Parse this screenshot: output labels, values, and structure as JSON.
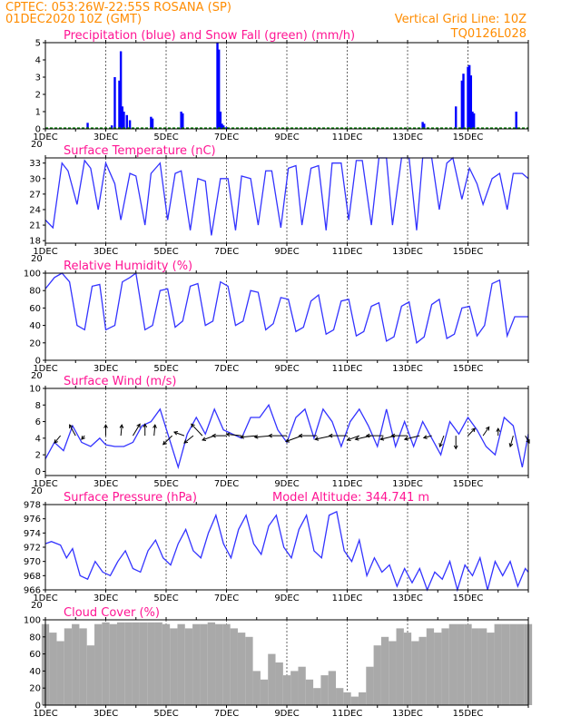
{
  "header": {
    "line1": "CPTEC:   053:26W-22:55S   ROSANA (SP)",
    "line2": "01DEC2020 10Z (GMT)",
    "grid_note": "Vertical Grid Line: 10Z",
    "code": "TQ0126L028",
    "color": "#ff8c00"
  },
  "colors": {
    "blue": "#0000ff",
    "line": "#3333ff",
    "green": "#008000",
    "gray": "#a9a9a9",
    "title": "#ff1493",
    "arrow": "#000000"
  },
  "x_ticks": [
    "1DEC",
    "3DEC",
    "5DEC",
    "7DEC",
    "9DEC",
    "11DEC",
    "13DEC",
    "15DEC"
  ],
  "cut_label": "20",
  "panels": [
    {
      "id": "precip",
      "title": "Precipitation (blue) and Snow Fall (green) (mm/h)",
      "yticks": [
        "0",
        "1",
        "2",
        "3",
        "4",
        "5"
      ],
      "ymin": 0,
      "ymax": 5,
      "chart_data": {
        "type": "bar",
        "xlabel": "",
        "ylabel": "",
        "ylim": [
          0,
          5
        ],
        "series": [
          {
            "name": "Precipitation",
            "color": "#0000ff",
            "x": [
              1.4,
              2.2,
              2.3,
              2.45,
              2.5,
              2.55,
              2.6,
              2.7,
              2.8,
              3.5,
              3.55,
              4.5,
              4.55,
              5.7,
              5.75,
              5.8,
              5.85,
              5.9,
              6.0,
              12.5,
              12.55,
              13.6,
              13.8,
              13.85,
              14.0,
              14.05,
              14.1,
              14.15,
              14.2,
              15.6
            ],
            "values": [
              0.35,
              0.2,
              3.0,
              2.8,
              4.5,
              1.3,
              1.0,
              0.8,
              0.5,
              0.7,
              0.6,
              1.0,
              0.9,
              5.0,
              4.6,
              1.0,
              0.3,
              0.2,
              0.1,
              0.4,
              0.3,
              1.3,
              2.8,
              3.2,
              3.6,
              3.7,
              3.1,
              1.0,
              0.9,
              1.0
            ]
          },
          {
            "name": "Snow Fall",
            "color": "#008000",
            "x": [],
            "values": []
          }
        ]
      }
    },
    {
      "id": "temp",
      "title": "Surface Temperature (nC)",
      "yticks": [
        "18",
        "21",
        "24",
        "27",
        "30",
        "33"
      ],
      "ymin": 17.5,
      "ymax": 34,
      "chart_data": {
        "type": "line",
        "xlabel": "",
        "ylabel": "",
        "ylim": [
          17.5,
          34
        ],
        "series": [
          {
            "name": "Surface Temperature",
            "x": [
              0.0,
              0.25,
              0.55,
              0.75,
              1.05,
              1.3,
              1.5,
              1.75,
              2.0,
              2.3,
              2.5,
              2.8,
              3.0,
              3.3,
              3.5,
              3.8,
              4.05,
              4.3,
              4.5,
              4.8,
              5.05,
              5.3,
              5.5,
              5.8,
              6.05,
              6.3,
              6.5,
              6.8,
              7.05,
              7.3,
              7.5,
              7.8,
              8.05,
              8.3,
              8.5,
              8.8,
              9.05,
              9.3,
              9.5,
              9.8,
              10.05,
              10.3,
              10.5,
              10.8,
              11.05,
              11.3,
              11.5,
              11.8,
              12.05,
              12.3,
              12.5,
              12.8,
              13.05,
              13.3,
              13.5,
              13.8,
              14.05,
              14.3,
              14.5,
              14.8,
              15.05,
              15.3,
              15.5,
              15.8,
              16.0
            ],
            "values": [
              22.0,
              20.5,
              33.0,
              31.5,
              25.0,
              33.5,
              32.0,
              24.0,
              33.0,
              29.0,
              22.0,
              31.0,
              30.5,
              21.0,
              31.0,
              33.0,
              22.0,
              31.0,
              31.5,
              20.0,
              30.0,
              29.5,
              19.0,
              30.0,
              30.0,
              20.0,
              30.5,
              30.0,
              21.0,
              31.5,
              31.5,
              20.5,
              32.0,
              32.5,
              21.0,
              32.0,
              32.5,
              20.0,
              33.0,
              33.0,
              22.0,
              33.5,
              33.5,
              21.0,
              34.0,
              34.0,
              21.0,
              34.0,
              34.0,
              20.0,
              34.0,
              34.0,
              24.0,
              33.0,
              34.0,
              26.0,
              32.0,
              29.0,
              25.0,
              30.0,
              31.0,
              24.0,
              31.0,
              31.0,
              30.0
            ]
          }
        ]
      }
    },
    {
      "id": "rh",
      "title": "Relative Humidity (%)",
      "yticks": [
        "0",
        "20",
        "40",
        "60",
        "80",
        "100"
      ],
      "ymin": 0,
      "ymax": 100,
      "chart_data": {
        "type": "line",
        "xlabel": "",
        "ylabel": "",
        "ylim": [
          0,
          100
        ],
        "series": [
          {
            "name": "Relative Humidity",
            "x": [
              0.0,
              0.3,
              0.55,
              0.8,
              1.05,
              1.3,
              1.55,
              1.8,
              2.0,
              2.3,
              2.55,
              2.8,
              3.0,
              3.3,
              3.55,
              3.8,
              4.05,
              4.3,
              4.55,
              4.8,
              5.05,
              5.3,
              5.55,
              5.8,
              6.05,
              6.3,
              6.55,
              6.8,
              7.05,
              7.3,
              7.55,
              7.8,
              8.05,
              8.3,
              8.55,
              8.8,
              9.05,
              9.3,
              9.55,
              9.8,
              10.05,
              10.3,
              10.55,
              10.8,
              11.05,
              11.3,
              11.55,
              11.8,
              12.05,
              12.3,
              12.55,
              12.8,
              13.05,
              13.3,
              13.55,
              13.8,
              14.05,
              14.3,
              14.55,
              14.8,
              15.05,
              15.3,
              15.55,
              15.8,
              16.0
            ],
            "values": [
              82,
              95,
              100,
              90,
              40,
              35,
              85,
              87,
              35,
              40,
              90,
              95,
              100,
              35,
              40,
              80,
              82,
              38,
              45,
              85,
              88,
              40,
              45,
              90,
              85,
              40,
              45,
              80,
              78,
              35,
              42,
              72,
              70,
              33,
              38,
              68,
              75,
              30,
              35,
              68,
              70,
              28,
              33,
              62,
              66,
              22,
              27,
              62,
              67,
              20,
              27,
              64,
              70,
              25,
              30,
              60,
              62,
              28,
              40,
              88,
              92,
              28,
              50,
              50,
              50
            ]
          }
        ]
      }
    },
    {
      "id": "wind",
      "title": "Surface Wind (m/s)",
      "yticks": [
        "0",
        "2",
        "4",
        "6",
        "8",
        "10"
      ],
      "ymin": -0.5,
      "ymax": 10,
      "chart_data": {
        "type": "line",
        "xlabel": "",
        "ylabel": "",
        "ylim": [
          -0.5,
          10
        ],
        "series": [
          {
            "name": "Surface Wind",
            "x": [
              0.0,
              0.3,
              0.6,
              0.9,
              1.2,
              1.5,
              1.8,
              2.0,
              2.3,
              2.6,
              2.9,
              3.2,
              3.5,
              3.8,
              4.1,
              4.4,
              4.7,
              5.0,
              5.3,
              5.6,
              5.9,
              6.2,
              6.5,
              6.8,
              7.1,
              7.4,
              7.7,
              8.0,
              8.3,
              8.6,
              8.9,
              9.2,
              9.5,
              9.8,
              10.1,
              10.4,
              10.7,
              11.0,
              11.3,
              11.6,
              11.9,
              12.2,
              12.5,
              12.8,
              13.1,
              13.4,
              13.7,
              14.0,
              14.3,
              14.6,
              14.9,
              15.2,
              15.5,
              15.8,
              16.0
            ],
            "values": [
              1.5,
              3.5,
              2.5,
              5.5,
              3.5,
              3.0,
              4.0,
              3.2,
              3.0,
              3.0,
              3.5,
              5.5,
              6.0,
              7.5,
              4.0,
              0.5,
              4.5,
              6.5,
              4.5,
              7.5,
              5.0,
              4.5,
              4.0,
              6.5,
              6.5,
              8.0,
              5.0,
              3.5,
              6.5,
              7.5,
              4.0,
              7.5,
              6.0,
              3.0,
              6.0,
              7.5,
              5.5,
              3.0,
              7.5,
              3.0,
              6.0,
              3.0,
              6.0,
              4.0,
              2.0,
              6.0,
              4.5,
              6.5,
              5.0,
              3.0,
              2.0,
              6.5,
              5.5,
              0.5,
              4.5
            ]
          }
        ],
        "arrows": {
          "x": [
            0.5,
            1.0,
            1.3,
            2.0,
            2.5,
            2.9,
            3.3,
            3.6,
            4.2,
            4.6,
            4.9,
            5.2,
            5.6,
            6.0,
            6.5,
            7.0,
            7.5,
            8.0,
            8.5,
            9.0,
            9.5,
            10.0,
            10.4,
            10.8,
            11.2,
            11.6,
            12.0,
            12.4,
            12.8,
            13.2,
            13.6,
            14.0,
            14.5,
            15.0,
            15.5,
            15.9
          ],
          "dx": [
            -0.3,
            -0.3,
            -0.15,
            0.0,
            0.05,
            0.35,
            0.0,
            0.05,
            -0.45,
            -0.5,
            -0.45,
            -0.55,
            -0.6,
            -0.7,
            -0.75,
            -0.8,
            -0.85,
            -0.9,
            -0.8,
            -0.9,
            -0.85,
            -0.9,
            -0.6,
            -0.8,
            -0.85,
            -0.75,
            -0.8,
            -0.75,
            -0.4,
            -0.2,
            0.0,
            0.35,
            0.3,
            0.0,
            -0.15,
            0.2
          ],
          "dy": [
            -1.0,
            1.5,
            -0.5,
            1.5,
            1.5,
            1.6,
            1.6,
            1.5,
            -1.2,
            0.5,
            -1.0,
            1.6,
            -0.6,
            0.0,
            0.2,
            -0.2,
            -0.2,
            0.0,
            -0.8,
            0.0,
            -0.5,
            0.0,
            -0.6,
            -0.5,
            0.0,
            -0.5,
            0.0,
            -0.5,
            -0.3,
            -1.5,
            -1.8,
            1.0,
            1.2,
            1.0,
            -1.5,
            -1.0
          ]
        }
      }
    },
    {
      "id": "press",
      "title": "Surface Pressure (hPa)",
      "extra": "Model Altitude: 344.741 m",
      "yticks": [
        "966",
        "968",
        "970",
        "972",
        "974",
        "976",
        "978"
      ],
      "ymin": 966,
      "ymax": 978,
      "chart_data": {
        "type": "line",
        "xlabel": "",
        "ylabel": "",
        "ylim": [
          966,
          978
        ],
        "series": [
          {
            "name": "Surface Pressure",
            "x": [
              0.0,
              0.2,
              0.5,
              0.7,
              0.9,
              1.15,
              1.4,
              1.65,
              1.9,
              2.15,
              2.4,
              2.65,
              2.9,
              3.15,
              3.4,
              3.65,
              3.9,
              4.15,
              4.4,
              4.65,
              4.9,
              5.15,
              5.4,
              5.65,
              5.9,
              6.15,
              6.4,
              6.65,
              6.9,
              7.15,
              7.4,
              7.65,
              7.9,
              8.15,
              8.4,
              8.65,
              8.9,
              9.15,
              9.4,
              9.65,
              9.9,
              10.15,
              10.4,
              10.65,
              10.9,
              11.15,
              11.4,
              11.65,
              11.9,
              12.15,
              12.4,
              12.65,
              12.9,
              13.15,
              13.4,
              13.65,
              13.9,
              14.15,
              14.4,
              14.65,
              14.9,
              15.15,
              15.4,
              15.65,
              15.9,
              16.0
            ],
            "values": [
              972.5,
              972.8,
              972.3,
              970.5,
              971.8,
              968.0,
              967.5,
              970.0,
              968.5,
              968.0,
              970.0,
              971.5,
              969.0,
              968.5,
              971.5,
              973.0,
              970.5,
              969.5,
              972.5,
              974.5,
              971.5,
              970.5,
              974.0,
              976.5,
              972.5,
              970.5,
              974.5,
              976.5,
              972.5,
              971.0,
              975.0,
              976.5,
              972.0,
              970.5,
              974.5,
              976.5,
              971.5,
              970.5,
              976.5,
              977.0,
              971.5,
              970.0,
              973.0,
              968.0,
              970.5,
              968.5,
              969.5,
              966.5,
              969.0,
              967.0,
              969.0,
              965.5,
              968.5,
              967.5,
              970.0,
              966.0,
              969.5,
              968.0,
              970.5,
              966.0,
              970.0,
              968.0,
              970.0,
              966.5,
              969.0,
              968.5
            ]
          }
        ]
      }
    },
    {
      "id": "cloud",
      "title": "Cloud Cover (%)",
      "yticks": [
        "0",
        "20",
        "40",
        "60",
        "80",
        "100"
      ],
      "ymin": 0,
      "ymax": 100,
      "chart_data": {
        "type": "area",
        "xlabel": "",
        "ylabel": "",
        "ylim": [
          0,
          100
        ],
        "series": [
          {
            "name": "Cloud Cover",
            "x": [
              0.0,
              0.25,
              0.5,
              0.75,
              1.0,
              1.25,
              1.5,
              1.75,
              2.0,
              2.25,
              2.5,
              2.75,
              3.0,
              3.25,
              3.5,
              3.75,
              4.0,
              4.25,
              4.5,
              4.75,
              5.0,
              5.25,
              5.5,
              5.75,
              6.0,
              6.25,
              6.5,
              6.75,
              7.0,
              7.25,
              7.5,
              7.75,
              8.0,
              8.25,
              8.5,
              8.75,
              9.0,
              9.25,
              9.5,
              9.75,
              10.0,
              10.25,
              10.5,
              10.75,
              11.0,
              11.25,
              11.5,
              11.75,
              12.0,
              12.25,
              12.5,
              12.75,
              13.0,
              13.25,
              13.5,
              13.75,
              14.0,
              14.25,
              14.5,
              14.75,
              15.0,
              15.25,
              15.5,
              15.75,
              16.0
            ],
            "values": [
              95,
              85,
              75,
              90,
              95,
              90,
              70,
              95,
              97,
              95,
              97,
              97,
              97,
              97,
              97,
              97,
              95,
              90,
              95,
              90,
              95,
              95,
              97,
              95,
              95,
              90,
              85,
              80,
              40,
              30,
              60,
              50,
              35,
              40,
              45,
              30,
              20,
              35,
              40,
              20,
              15,
              10,
              15,
              45,
              70,
              80,
              75,
              90,
              85,
              75,
              80,
              90,
              85,
              90,
              95,
              95,
              95,
              90,
              90,
              85,
              95,
              95,
              95,
              95,
              95
            ]
          }
        ]
      }
    }
  ]
}
